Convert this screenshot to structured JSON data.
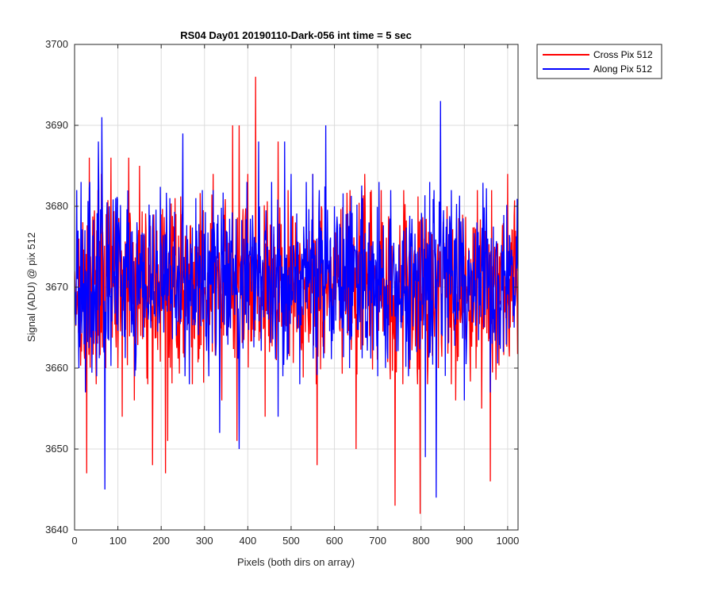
{
  "chart_data": {
    "type": "line",
    "title": "RS04 Day01 20190110-Dark-056 int time = 5 sec",
    "xlabel": "Pixels (both dirs on array)",
    "ylabel": "Signal (ADU) @ pix 512",
    "xlim": [
      0,
      1024
    ],
    "ylim": [
      3640,
      3700
    ],
    "xticks": [
      0,
      100,
      200,
      300,
      400,
      500,
      600,
      700,
      800,
      900,
      1000
    ],
    "yticks": [
      3640,
      3650,
      3660,
      3670,
      3680,
      3690,
      3700
    ],
    "grid": true,
    "legend_position": "outside-top-right",
    "series": [
      {
        "name": "Cross Pix 512",
        "color": "#ff0000",
        "mean": 3670,
        "points": [
          [
            0,
            3672
          ],
          [
            10,
            3676
          ],
          [
            20,
            3668
          ],
          [
            28,
            3647
          ],
          [
            34,
            3686
          ],
          [
            45,
            3678
          ],
          [
            55,
            3664
          ],
          [
            62,
            3684
          ],
          [
            72,
            3660
          ],
          [
            84,
            3686
          ],
          [
            92,
            3674
          ],
          [
            100,
            3660
          ],
          [
            110,
            3654
          ],
          [
            125,
            3686
          ],
          [
            138,
            3656
          ],
          [
            150,
            3685
          ],
          [
            165,
            3677
          ],
          [
            180,
            3648
          ],
          [
            190,
            3677
          ],
          [
            210,
            3647
          ],
          [
            215,
            3651
          ],
          [
            232,
            3681
          ],
          [
            250,
            3672
          ],
          [
            260,
            3668
          ],
          [
            280,
            3676
          ],
          [
            300,
            3670
          ],
          [
            320,
            3684
          ],
          [
            340,
            3656
          ],
          [
            360,
            3665
          ],
          [
            365,
            3690
          ],
          [
            375,
            3651
          ],
          [
            380,
            3690
          ],
          [
            400,
            3684
          ],
          [
            410,
            3675
          ],
          [
            418,
            3696
          ],
          [
            425,
            3670
          ],
          [
            440,
            3654
          ],
          [
            450,
            3662
          ],
          [
            462,
            3675
          ],
          [
            470,
            3688
          ],
          [
            490,
            3669
          ],
          [
            510,
            3678
          ],
          [
            530,
            3670
          ],
          [
            550,
            3684
          ],
          [
            560,
            3648
          ],
          [
            570,
            3680
          ],
          [
            600,
            3672
          ],
          [
            620,
            3676
          ],
          [
            640,
            3666
          ],
          [
            650,
            3650
          ],
          [
            670,
            3684
          ],
          [
            700,
            3670
          ],
          [
            730,
            3678
          ],
          [
            740,
            3643
          ],
          [
            760,
            3682
          ],
          [
            780,
            3664
          ],
          [
            798,
            3642
          ],
          [
            820,
            3672
          ],
          [
            840,
            3660
          ],
          [
            860,
            3680
          ],
          [
            880,
            3656
          ],
          [
            900,
            3670
          ],
          [
            930,
            3682
          ],
          [
            940,
            3655
          ],
          [
            960,
            3646
          ],
          [
            970,
            3675
          ],
          [
            1000,
            3684
          ],
          [
            1024,
            3662
          ]
        ]
      },
      {
        "name": "Along Pix 512",
        "color": "#0000ff",
        "mean": 3671,
        "points": [
          [
            0,
            3671
          ],
          [
            5,
            3682
          ],
          [
            10,
            3660
          ],
          [
            15,
            3683
          ],
          [
            25,
            3657
          ],
          [
            35,
            3683
          ],
          [
            45,
            3663
          ],
          [
            55,
            3688
          ],
          [
            63,
            3691
          ],
          [
            70,
            3645
          ],
          [
            80,
            3680
          ],
          [
            95,
            3681
          ],
          [
            110,
            3664
          ],
          [
            125,
            3678
          ],
          [
            140,
            3663
          ],
          [
            155,
            3672
          ],
          [
            170,
            3666
          ],
          [
            185,
            3667
          ],
          [
            200,
            3675
          ],
          [
            220,
            3681
          ],
          [
            235,
            3664
          ],
          [
            250,
            3689
          ],
          [
            265,
            3658
          ],
          [
            280,
            3681
          ],
          [
            295,
            3682
          ],
          [
            310,
            3659
          ],
          [
            320,
            3682
          ],
          [
            335,
            3652
          ],
          [
            350,
            3677
          ],
          [
            365,
            3669
          ],
          [
            380,
            3650
          ],
          [
            398,
            3683
          ],
          [
            410,
            3673
          ],
          [
            425,
            3688
          ],
          [
            440,
            3677
          ],
          [
            455,
            3683
          ],
          [
            470,
            3654
          ],
          [
            485,
            3688
          ],
          [
            500,
            3684
          ],
          [
            520,
            3658
          ],
          [
            535,
            3683
          ],
          [
            550,
            3684
          ],
          [
            565,
            3682
          ],
          [
            580,
            3690
          ],
          [
            600,
            3680
          ],
          [
            615,
            3667
          ],
          [
            635,
            3660
          ],
          [
            650,
            3672
          ],
          [
            665,
            3681
          ],
          [
            680,
            3678
          ],
          [
            700,
            3659
          ],
          [
            715,
            3664
          ],
          [
            730,
            3682
          ],
          [
            745,
            3672
          ],
          [
            760,
            3677
          ],
          [
            775,
            3661
          ],
          [
            790,
            3662
          ],
          [
            810,
            3649
          ],
          [
            820,
            3683
          ],
          [
            830,
            3682
          ],
          [
            835,
            3644
          ],
          [
            840,
            3670
          ],
          [
            845,
            3693
          ],
          [
            855,
            3675
          ],
          [
            870,
            3682
          ],
          [
            885,
            3666
          ],
          [
            900,
            3656
          ],
          [
            915,
            3673
          ],
          [
            930,
            3676
          ],
          [
            945,
            3665
          ],
          [
            960,
            3657
          ],
          [
            975,
            3675
          ],
          [
            990,
            3662
          ],
          [
            1005,
            3676
          ],
          [
            1015,
            3665
          ],
          [
            1024,
            3672
          ]
        ]
      }
    ]
  }
}
